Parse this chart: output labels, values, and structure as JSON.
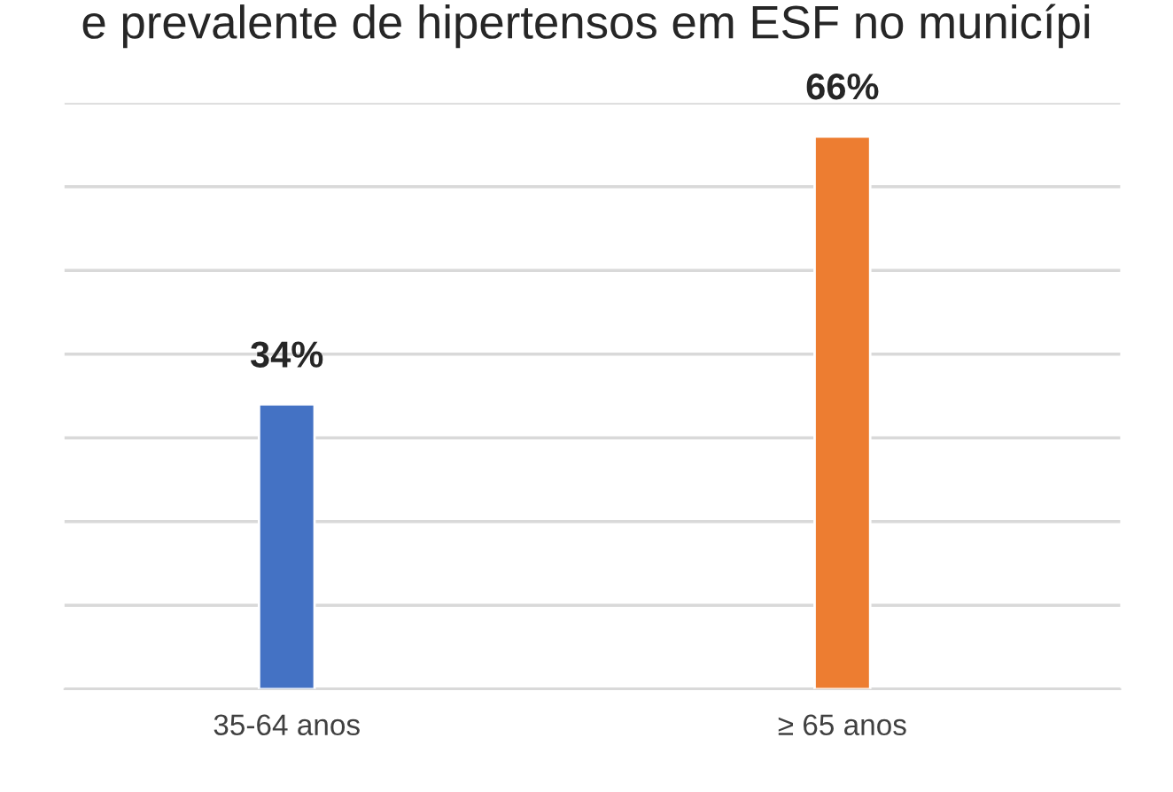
{
  "chart_data": {
    "type": "bar",
    "title": "e prevalente de hipertensos em ESF no municípi",
    "categories": [
      "35-64 anos",
      "≥ 65 anos"
    ],
    "values": [
      34,
      66
    ],
    "colors": [
      "#4472c4",
      "#ed7d31"
    ],
    "value_labels": [
      "34%",
      "66%"
    ],
    "ylim": [
      0,
      70
    ],
    "yticks": [
      {
        "value": 0,
        "label": null
      },
      {
        "value": 10,
        "label": null
      },
      {
        "value": 20,
        "label": null
      },
      {
        "value": 30,
        "label": null
      },
      {
        "value": 40,
        "label": null
      },
      {
        "value": 50,
        "label": null
      },
      {
        "value": 60,
        "label": null
      },
      {
        "value": 70,
        "label": null
      }
    ],
    "grid": "y",
    "tick_labels": "x",
    "legend": false
  }
}
